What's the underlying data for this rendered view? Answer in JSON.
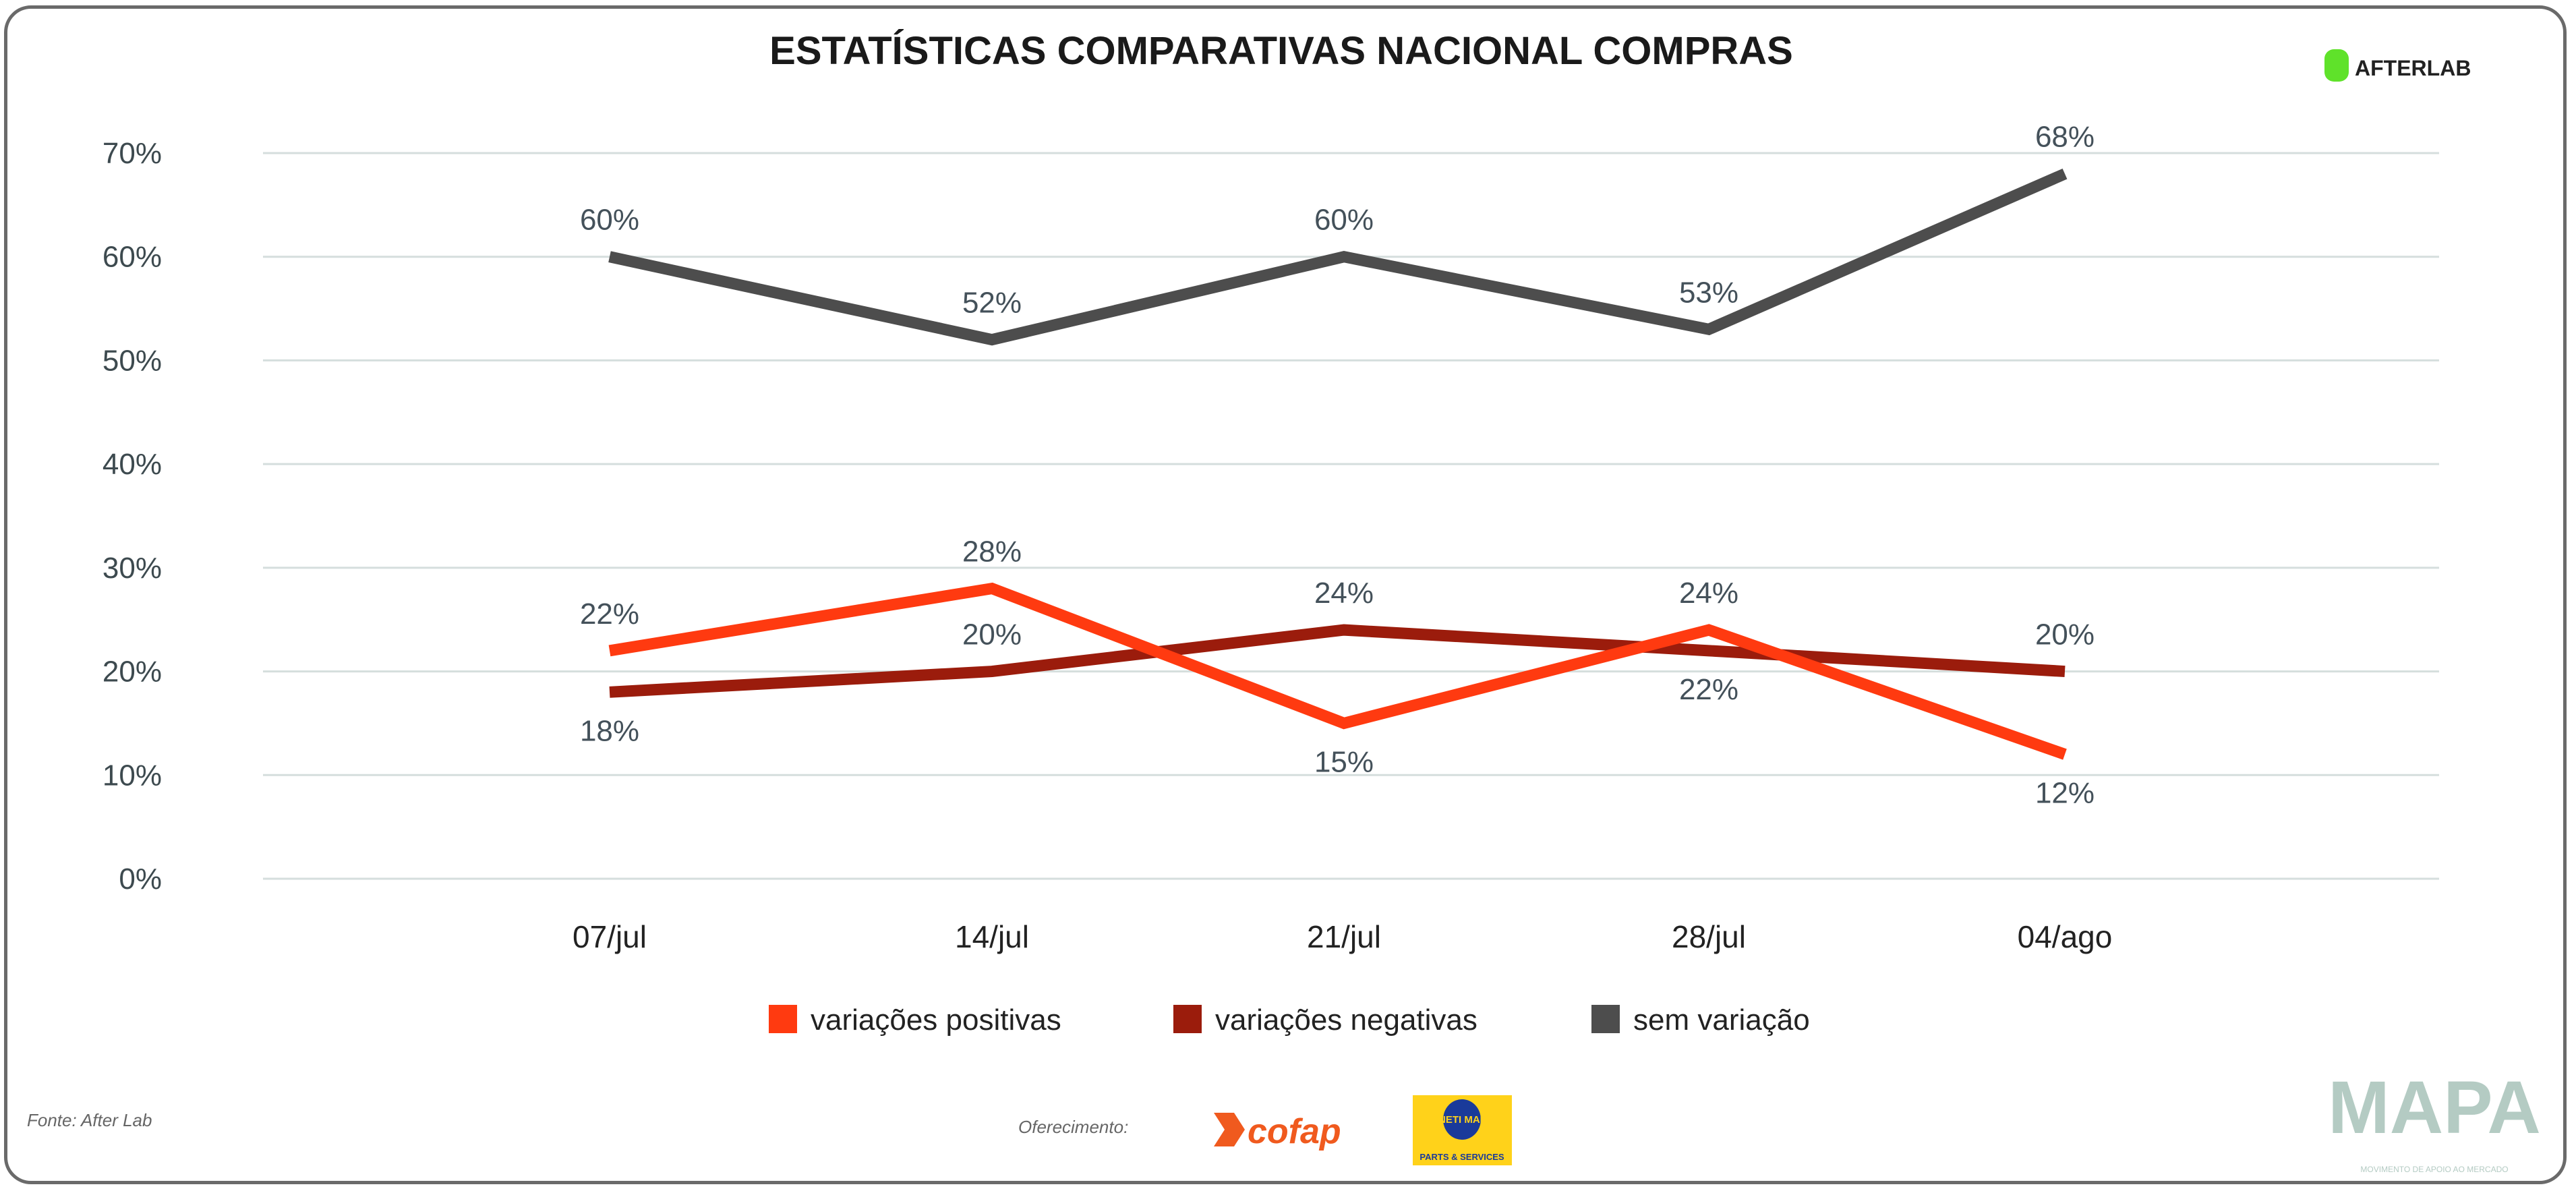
{
  "brand": {
    "afterlab": "AFTERLAB",
    "mapa": "MAPA",
    "mapa_sub": "MOVIMENTO DE APOIO AO MERCADO",
    "cofap": "cofap",
    "magneti": "MAGNETI MARELLI",
    "magneti_sub": "PARTS & SERVICES"
  },
  "footer": {
    "source": "Fonte: After Lab",
    "sponsor": "Oferecimento:"
  },
  "chart_data": {
    "type": "line",
    "title": "ESTATÍSTICAS COMPARATIVAS NACIONAL COMPRAS",
    "categories": [
      "07/jul",
      "14/jul",
      "21/jul",
      "28/jul",
      "04/ago"
    ],
    "ylim": [
      0,
      70
    ],
    "yticks": [
      "0%",
      "10%",
      "20%",
      "30%",
      "40%",
      "50%",
      "60%",
      "70%"
    ],
    "grid": true,
    "legend_position": "bottom",
    "series": [
      {
        "name": "variações positivas",
        "color": "#ff3a10",
        "values": [
          22,
          28,
          15,
          24,
          12
        ],
        "labels": [
          "22%",
          "28%",
          "15%",
          "24%",
          "12%"
        ]
      },
      {
        "name": "variações negativas",
        "color": "#9b1c0c",
        "values": [
          18,
          20,
          24,
          22,
          20
        ],
        "labels": [
          "18%",
          "20%",
          "24%",
          "22%",
          "20%"
        ]
      },
      {
        "name": "sem variação",
        "color": "#4d4d4d",
        "values": [
          60,
          52,
          60,
          53,
          68
        ],
        "labels": [
          "60%",
          "52%",
          "60%",
          "53%",
          "68%"
        ]
      }
    ]
  }
}
